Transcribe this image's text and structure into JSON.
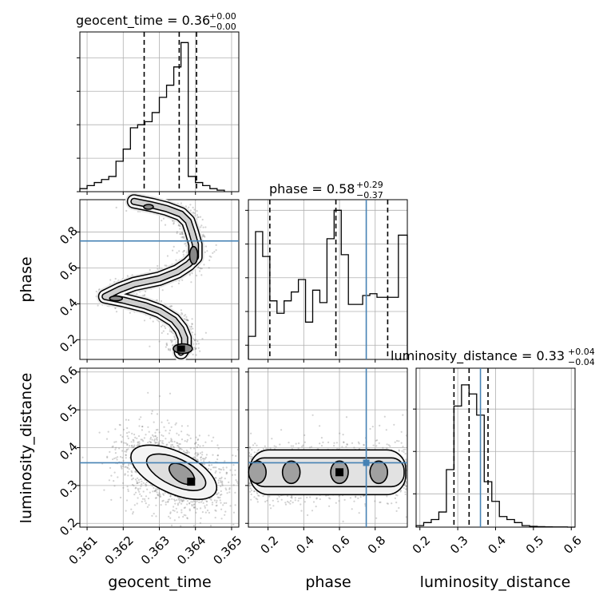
{
  "chart_data": [
    {
      "type": "histogram",
      "panel": "geocent_time",
      "title": {
        "param": "geocent_time",
        "median": "0.36",
        "upper": "+0.00",
        "lower": "−0.00"
      },
      "xlim": [
        0.3608,
        0.3652
      ],
      "xticks": [
        0.361,
        0.362,
        0.363,
        0.364,
        0.365
      ],
      "bin_edges": [
        0.3608,
        0.361,
        0.3612,
        0.3614,
        0.3616,
        0.3618,
        0.362,
        0.3622,
        0.3624,
        0.3626,
        0.3628,
        0.363,
        0.3632,
        0.3634,
        0.3636,
        0.3638,
        0.364,
        0.3642,
        0.3644,
        0.3646,
        0.3648
      ],
      "heights": [
        0.02,
        0.04,
        0.06,
        0.08,
        0.1,
        0.2,
        0.28,
        0.42,
        0.44,
        0.46,
        0.52,
        0.62,
        0.7,
        0.82,
        0.98,
        0.1,
        0.06,
        0.04,
        0.02,
        0.01
      ],
      "quantiles": [
        0.36258,
        0.36355,
        0.36403
      ],
      "ylim": [
        0,
        1.05
      ],
      "yticks": [
        0.0,
        0.22,
        0.44,
        0.66,
        0.88
      ],
      "grid": true
    },
    {
      "type": "histogram",
      "panel": "phase",
      "title": {
        "param": "phase",
        "median": "0.58",
        "upper": "+0.29",
        "lower": "−0.37"
      },
      "xlim": [
        0.09,
        0.98
      ],
      "bin_edges": [
        0.09,
        0.13,
        0.17,
        0.21,
        0.25,
        0.29,
        0.33,
        0.37,
        0.41,
        0.45,
        0.49,
        0.53,
        0.57,
        0.61,
        0.65,
        0.69,
        0.73,
        0.77,
        0.81,
        0.85,
        0.89,
        0.93,
        0.98
      ],
      "heights": [
        0.13,
        0.72,
        0.58,
        0.33,
        0.26,
        0.33,
        0.38,
        0.45,
        0.21,
        0.39,
        0.32,
        0.68,
        0.84,
        0.59,
        0.31,
        0.31,
        0.36,
        0.37,
        0.35,
        0.35,
        0.35,
        0.7
      ],
      "quantiles": [
        0.21,
        0.58,
        0.87
      ],
      "truth": 0.75,
      "ylim": [
        0,
        0.9
      ],
      "yticks": [
        0.08,
        0.27,
        0.46,
        0.65,
        0.84
      ],
      "grid": true
    },
    {
      "type": "histogram",
      "panel": "luminosity_distance",
      "title": {
        "param": "luminosity_distance",
        "median": "0.33",
        "upper": "+0.04",
        "lower": "−0.04"
      },
      "xlim": [
        0.19,
        0.61
      ],
      "xticks": [
        0.2,
        0.3,
        0.4,
        0.5,
        0.6
      ],
      "xtick_labels": [
        "0.2",
        "0.3",
        "0.4",
        "0.5",
        "0.6"
      ],
      "xlabel": "luminosity_distance",
      "bin_edges": [
        0.19,
        0.21,
        0.23,
        0.25,
        0.27,
        0.29,
        0.31,
        0.33,
        0.35,
        0.37,
        0.39,
        0.41,
        0.43,
        0.45,
        0.47,
        0.49,
        0.51,
        0.53,
        0.55,
        0.57,
        0.59,
        0.61
      ],
      "heights": [
        0.01,
        0.03,
        0.05,
        0.1,
        0.38,
        0.8,
        0.94,
        0.88,
        0.74,
        0.3,
        0.17,
        0.07,
        0.05,
        0.03,
        0.01,
        0.005,
        0.003,
        0.002,
        0.001,
        0.001,
        0.0
      ],
      "quantiles": [
        0.29,
        0.33,
        0.38
      ],
      "truth": 0.36,
      "ylim": [
        0,
        1.05
      ],
      "yticks": [
        0.22,
        0.5,
        0.78
      ],
      "grid": true
    },
    {
      "type": "scatter-contour",
      "panel": "phase vs geocent_time",
      "xlim": [
        0.3608,
        0.3652
      ],
      "ylim": [
        0.09,
        0.98
      ],
      "yticks": [
        0.2,
        0.4,
        0.6,
        0.8
      ],
      "ytick_labels": [
        "0.2",
        "0.4",
        "0.6",
        "0.8"
      ],
      "ylabel": "phase",
      "truth_y": 0.75,
      "ridge": [
        [
          0.3623,
          0.97
        ],
        [
          0.3628,
          0.95
        ],
        [
          0.3632,
          0.93
        ],
        [
          0.3636,
          0.9
        ],
        [
          0.3638,
          0.86
        ],
        [
          0.3639,
          0.8
        ],
        [
          0.364,
          0.73
        ],
        [
          0.364,
          0.66
        ],
        [
          0.3638,
          0.62
        ],
        [
          0.3635,
          0.58
        ],
        [
          0.363,
          0.54
        ],
        [
          0.3623,
          0.51
        ],
        [
          0.3619,
          0.48
        ],
        [
          0.3615,
          0.44
        ],
        [
          0.362,
          0.42
        ],
        [
          0.3626,
          0.39
        ],
        [
          0.363,
          0.36
        ],
        [
          0.3634,
          0.31
        ],
        [
          0.3636,
          0.26
        ],
        [
          0.3637,
          0.21
        ],
        [
          0.3637,
          0.16
        ],
        [
          0.3636,
          0.13
        ]
      ],
      "grid": true
    },
    {
      "type": "scatter-contour",
      "panel": "luminosity_distance vs geocent_time",
      "xlim": [
        0.3608,
        0.3652
      ],
      "xticks": [
        0.361,
        0.362,
        0.363,
        0.364,
        0.365
      ],
      "xtick_labels": [
        "0.361",
        "0.362",
        "0.363",
        "0.364",
        "0.365"
      ],
      "xlabel": "geocent_time",
      "ylim": [
        0.19,
        0.61
      ],
      "yticks": [
        0.2,
        0.3,
        0.4,
        0.5,
        0.6
      ],
      "ytick_labels": [
        "0.2",
        "0.3",
        "0.4",
        "0.5",
        "0.6"
      ],
      "ylabel": "luminosity_distance",
      "truth_y": 0.36,
      "center": [
        0.3634,
        0.335
      ],
      "grid": true
    },
    {
      "type": "scatter-contour",
      "panel": "luminosity_distance vs phase",
      "xlim": [
        0.09,
        0.98
      ],
      "xticks": [
        0.2,
        0.4,
        0.6,
        0.8
      ],
      "xtick_labels": [
        "0.2",
        "0.4",
        "0.6",
        "0.8"
      ],
      "xlabel": "phase",
      "ylim": [
        0.19,
        0.61
      ],
      "truth_x": 0.75,
      "truth_y": 0.36,
      "blobs": [
        [
          0.14,
          0.335
        ],
        [
          0.33,
          0.335
        ],
        [
          0.6,
          0.335
        ],
        [
          0.82,
          0.335
        ]
      ],
      "grid": true
    }
  ],
  "colors": {
    "truth": "#4682b4",
    "line": "#000000",
    "grid": "#b0b0b0",
    "points": "#7f7f7f"
  }
}
